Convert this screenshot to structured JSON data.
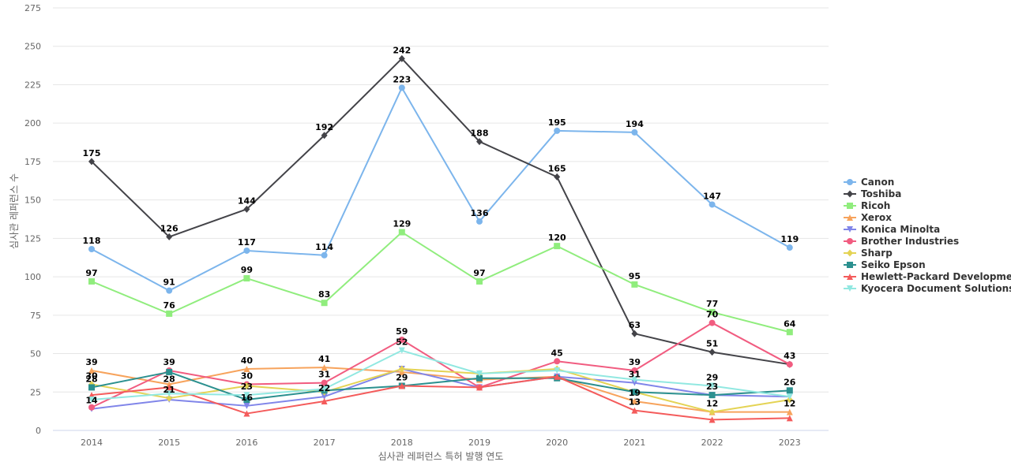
{
  "chart_data": {
    "type": "line",
    "title": "",
    "xlabel": "심사관 레퍼런스 특허 발행 연도",
    "ylabel": "심사관 레퍼런스 수",
    "x": [
      "2014",
      "2015",
      "2016",
      "2017",
      "2018",
      "2019",
      "2020",
      "2021",
      "2022",
      "2023"
    ],
    "ylim": [
      0,
      275
    ],
    "yticks": [
      0,
      25,
      50,
      75,
      100,
      125,
      150,
      175,
      200,
      225,
      250,
      275
    ],
    "grid": true,
    "legend_position": "right",
    "series": [
      {
        "name": "Canon",
        "color": "#7cb5ec",
        "marker": "circle",
        "values": [
          118,
          91,
          117,
          114,
          223,
          136,
          195,
          194,
          147,
          119
        ],
        "labels": [
          true,
          true,
          true,
          true,
          true,
          true,
          true,
          true,
          true,
          true
        ]
      },
      {
        "name": "Toshiba",
        "color": "#434348",
        "marker": "diamond",
        "values": [
          175,
          126,
          144,
          192,
          242,
          188,
          165,
          63,
          51,
          43
        ],
        "labels": [
          true,
          true,
          true,
          true,
          true,
          true,
          true,
          true,
          true,
          false
        ]
      },
      {
        "name": "Ricoh",
        "color": "#90ed7d",
        "marker": "square",
        "values": [
          97,
          76,
          99,
          83,
          129,
          97,
          120,
          95,
          77,
          64
        ],
        "labels": [
          true,
          true,
          true,
          true,
          true,
          true,
          true,
          true,
          true,
          true
        ]
      },
      {
        "name": "Xerox",
        "color": "#f7a35c",
        "marker": "triangle",
        "values": [
          39,
          30,
          40,
          41,
          38,
          33,
          35,
          19,
          12,
          12
        ],
        "labels": [
          true,
          false,
          true,
          true,
          false,
          false,
          false,
          true,
          false,
          true
        ]
      },
      {
        "name": "Konica Minolta",
        "color": "#8085e9",
        "marker": "triangle-down",
        "values": [
          14,
          20,
          16,
          22,
          40,
          28,
          35,
          31,
          23,
          22
        ],
        "labels": [
          true,
          false,
          true,
          true,
          false,
          false,
          false,
          true,
          true,
          false
        ]
      },
      {
        "name": "Brother Industries",
        "color": "#f15c80",
        "marker": "circle",
        "values": [
          15,
          39,
          30,
          31,
          59,
          28,
          45,
          39,
          70,
          43
        ],
        "labels": [
          false,
          true,
          true,
          true,
          true,
          false,
          true,
          true,
          true,
          true
        ]
      },
      {
        "name": "Sharp",
        "color": "#e4d354",
        "marker": "diamond",
        "values": [
          30,
          21,
          29,
          25,
          40,
          37,
          40,
          25,
          12,
          20
        ],
        "labels": [
          true,
          true,
          false,
          false,
          false,
          false,
          false,
          false,
          true,
          false
        ]
      },
      {
        "name": "Seiko Epson",
        "color": "#2b908f",
        "marker": "square",
        "values": [
          28,
          38,
          20,
          26,
          29,
          34,
          34,
          25,
          23,
          26
        ],
        "labels": [
          true,
          false,
          false,
          false,
          true,
          false,
          false,
          false,
          false,
          true
        ]
      },
      {
        "name": "Hewlett-Packard Development",
        "color": "#f45b5b",
        "marker": "triangle",
        "values": [
          23,
          28,
          11,
          19,
          29,
          28,
          35,
          13,
          7,
          8
        ],
        "labels": [
          false,
          true,
          false,
          false,
          false,
          false,
          false,
          true,
          false,
          false
        ]
      },
      {
        "name": "Kyocera Document Solutions",
        "color": "#91e8e1",
        "marker": "triangle-down",
        "values": [
          20,
          24,
          23,
          27,
          52,
          37,
          39,
          33,
          29,
          22
        ],
        "labels": [
          false,
          false,
          true,
          false,
          true,
          false,
          false,
          false,
          true,
          false
        ]
      }
    ]
  }
}
